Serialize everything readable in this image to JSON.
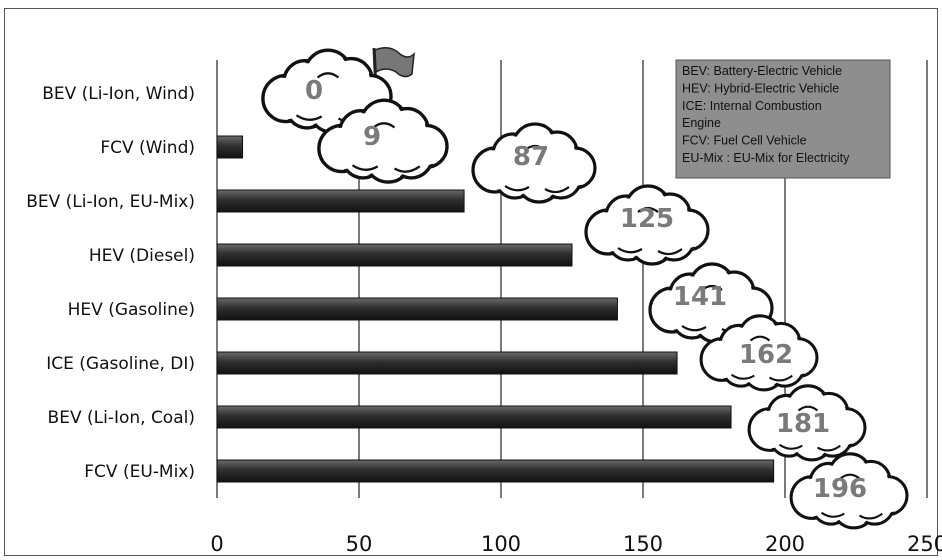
{
  "chart_data": {
    "type": "bar",
    "orientation": "horizontal",
    "categories": [
      "BEV (Li-Ion, Wind)",
      "FCV (Wind)",
      "BEV (Li-Ion, EU-Mix)",
      "HEV (Diesel)",
      "HEV (Gasoline)",
      "ICE (Gasoline,  DI)",
      "BEV (Li-Ion, Coal)",
      "FCV (EU-Mix)"
    ],
    "values": [
      0,
      9,
      87,
      125,
      141,
      162,
      181,
      196
    ],
    "data_labels": [
      "0",
      "9",
      "87",
      "125",
      "141",
      "162",
      "181",
      "196"
    ],
    "xlim": [
      0,
      250
    ],
    "xticks": [
      "0",
      "50",
      "100",
      "150",
      "200",
      "250"
    ],
    "grid": "vertical",
    "legend_placement": "top-right",
    "legend": [
      "BEV: Battery-Electric Vehicle",
      "HEV: Hybrid-Electric Vehicle",
      "ICE: Internal Combustion",
      "Engine",
      "FCV: Fuel Cell Vehicle",
      "EU-Mix : EU-Mix for Electricity"
    ],
    "bar_color": "#2f2f2f",
    "legend_bg": "#8e8e8e",
    "label_color": "#7a7a7a",
    "icons": [
      "cloud-icon",
      "flag-icon"
    ]
  }
}
